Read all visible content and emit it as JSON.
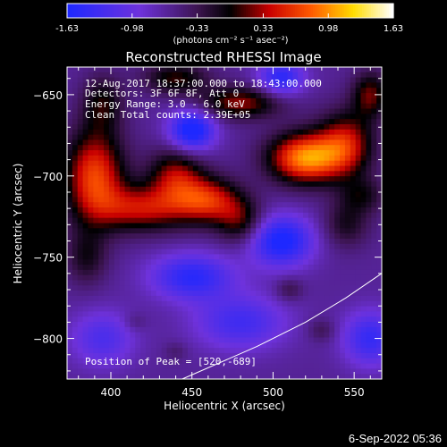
{
  "colorbar": {
    "tick_labels": [
      "-1.63",
      "-0.98",
      "-0.33",
      "0.33",
      "0.98",
      "1.63"
    ],
    "tick_values": [
      -1.63,
      -0.98,
      -0.33,
      0.33,
      0.98,
      1.63
    ],
    "unit_label": "(photons cm⁻² s⁻¹ asec⁻²)",
    "range": [
      -1.63,
      1.63
    ]
  },
  "chart_data": {
    "type": "heatmap",
    "title": "Reconstructed RHESSI Image",
    "xlabel": "Heliocentric X (arcsec)",
    "ylabel": "Heliocentric Y (arcsec)",
    "xlim": [
      373,
      567
    ],
    "ylim": [
      -825,
      -633
    ],
    "x_ticks": [
      400,
      450,
      500,
      550
    ],
    "x_tick_labels": [
      "400",
      "450",
      "500",
      "550"
    ],
    "y_ticks": [
      -650,
      -700,
      -750,
      -800
    ],
    "y_tick_labels": [
      "-650",
      "-700",
      "-750",
      "-800"
    ],
    "info_lines": [
      "12-Aug-2017 18:37:00.000 to 18:43:00.000",
      "Detectors: 3F 6F 8F, Att 0",
      "Energy Range: 3.0 - 6.0 keV",
      "Clean     Total counts: 2.39E+05"
    ],
    "peak_label": "Position of Peak = [520,-689]",
    "peak_position": [
      520,
      -689
    ],
    "blobs": [
      {
        "x": 520,
        "y": -689,
        "amp": 1.6,
        "sx": 16,
        "sy": 11
      },
      {
        "x": 545,
        "y": -680,
        "amp": 1.0,
        "sx": 12,
        "sy": 14
      },
      {
        "x": 560,
        "y": -650,
        "amp": 0.8,
        "sx": 8,
        "sy": 10
      },
      {
        "x": 480,
        "y": -655,
        "amp": 0.9,
        "sx": 18,
        "sy": 7
      },
      {
        "x": 440,
        "y": -640,
        "amp": 0.7,
        "sx": 14,
        "sy": 7
      },
      {
        "x": 395,
        "y": -655,
        "amp": 0.6,
        "sx": 9,
        "sy": 12
      },
      {
        "x": 390,
        "y": -700,
        "amp": 1.3,
        "sx": 13,
        "sy": 20
      },
      {
        "x": 420,
        "y": -720,
        "amp": 1.0,
        "sx": 20,
        "sy": 10
      },
      {
        "x": 460,
        "y": -715,
        "amp": 1.1,
        "sx": 14,
        "sy": 10
      },
      {
        "x": 440,
        "y": -700,
        "amp": 0.9,
        "sx": 12,
        "sy": 12
      },
      {
        "x": 480,
        "y": -728,
        "amp": 0.7,
        "sx": 10,
        "sy": 10
      },
      {
        "x": 545,
        "y": -730,
        "amp": 0.5,
        "sx": 10,
        "sy": 10
      },
      {
        "x": 385,
        "y": -750,
        "amp": 0.5,
        "sx": 9,
        "sy": 12
      },
      {
        "x": 555,
        "y": -712,
        "amp": 0.5,
        "sx": 10,
        "sy": 8
      },
      {
        "x": 450,
        "y": -672,
        "amp": -1.2,
        "sx": 10,
        "sy": 9
      },
      {
        "x": 505,
        "y": -640,
        "amp": -0.9,
        "sx": 10,
        "sy": 8
      },
      {
        "x": 505,
        "y": -740,
        "amp": -1.1,
        "sx": 14,
        "sy": 11
      },
      {
        "x": 450,
        "y": -762,
        "amp": -0.9,
        "sx": 18,
        "sy": 10
      },
      {
        "x": 560,
        "y": -800,
        "amp": -0.8,
        "sx": 12,
        "sy": 12
      },
      {
        "x": 480,
        "y": -790,
        "amp": -0.7,
        "sx": 20,
        "sy": 12
      },
      {
        "x": 395,
        "y": -800,
        "amp": -0.6,
        "sx": 14,
        "sy": 12
      },
      {
        "x": 510,
        "y": -770,
        "amp": 0.35,
        "sx": 6,
        "sy": 5
      },
      {
        "x": 530,
        "y": -795,
        "amp": 0.3,
        "sx": 6,
        "sy": 5
      },
      {
        "x": 440,
        "y": -808,
        "amp": 0.2,
        "sx": 5,
        "sy": 4
      },
      {
        "x": 415,
        "y": -790,
        "amp": 0.2,
        "sx": 5,
        "sy": 4
      }
    ],
    "base_level": -0.62,
    "limb_arc": [
      [
        444,
        -825
      ],
      [
        490,
        -805
      ],
      [
        520,
        -790
      ],
      [
        545,
        -775
      ],
      [
        567,
        -760
      ]
    ]
  },
  "footer": {
    "date": "6-Sep-2022 05:36"
  }
}
